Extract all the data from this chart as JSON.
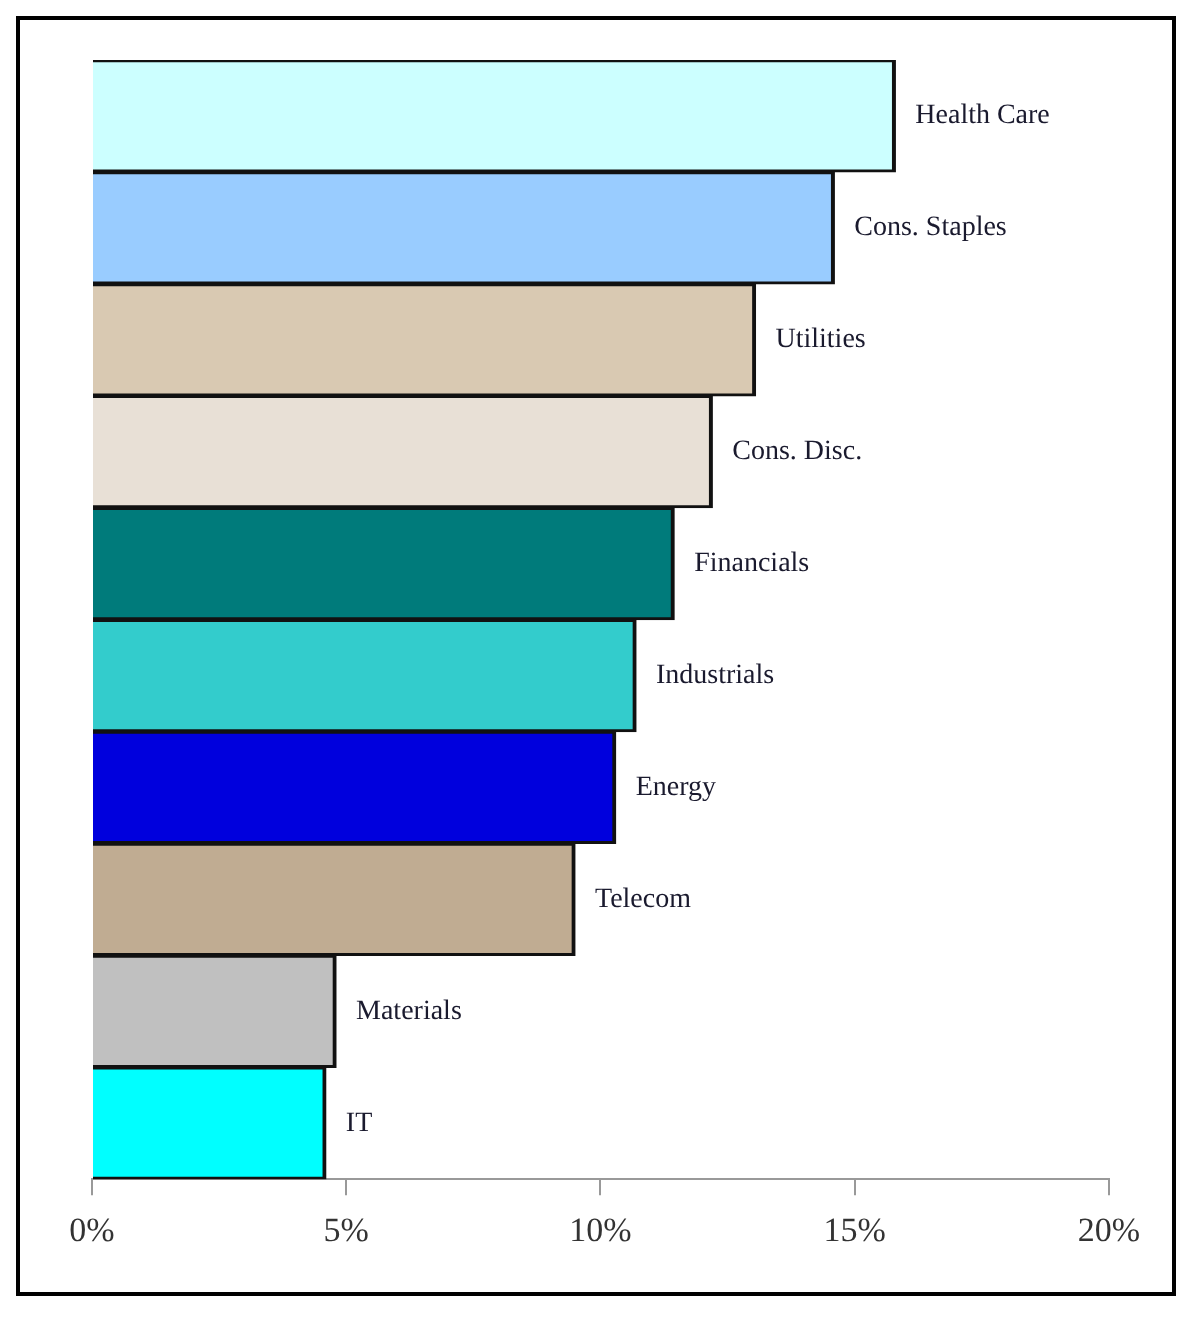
{
  "chart_data": {
    "type": "bar",
    "orientation": "horizontal",
    "categories": [
      "Health Care",
      "Cons. Staples",
      "Utilities",
      "Cons. Disc.",
      "Financials",
      "Industrials",
      "Energy",
      "Telecom",
      "Materials",
      "IT"
    ],
    "values": [
      15.8,
      14.6,
      13.05,
      12.2,
      11.45,
      10.7,
      10.3,
      9.5,
      4.8,
      4.6
    ],
    "colors": [
      "#ccffff",
      "#99ccff",
      "#d9c9b2",
      "#e8e0d6",
      "#007b7b",
      "#33cccc",
      "#0000dd",
      "#c0ac92",
      "#c0c0c0",
      "#00ffff"
    ],
    "xlim": [
      0,
      20
    ],
    "xticks": [
      {
        "value": 0,
        "label": "0%"
      },
      {
        "value": 5,
        "label": "5%"
      },
      {
        "value": 10,
        "label": "10%"
      },
      {
        "value": 15,
        "label": "15%"
      },
      {
        "value": 20,
        "label": "20%"
      }
    ],
    "grid": false,
    "legend": false,
    "tick_labels": "x"
  }
}
